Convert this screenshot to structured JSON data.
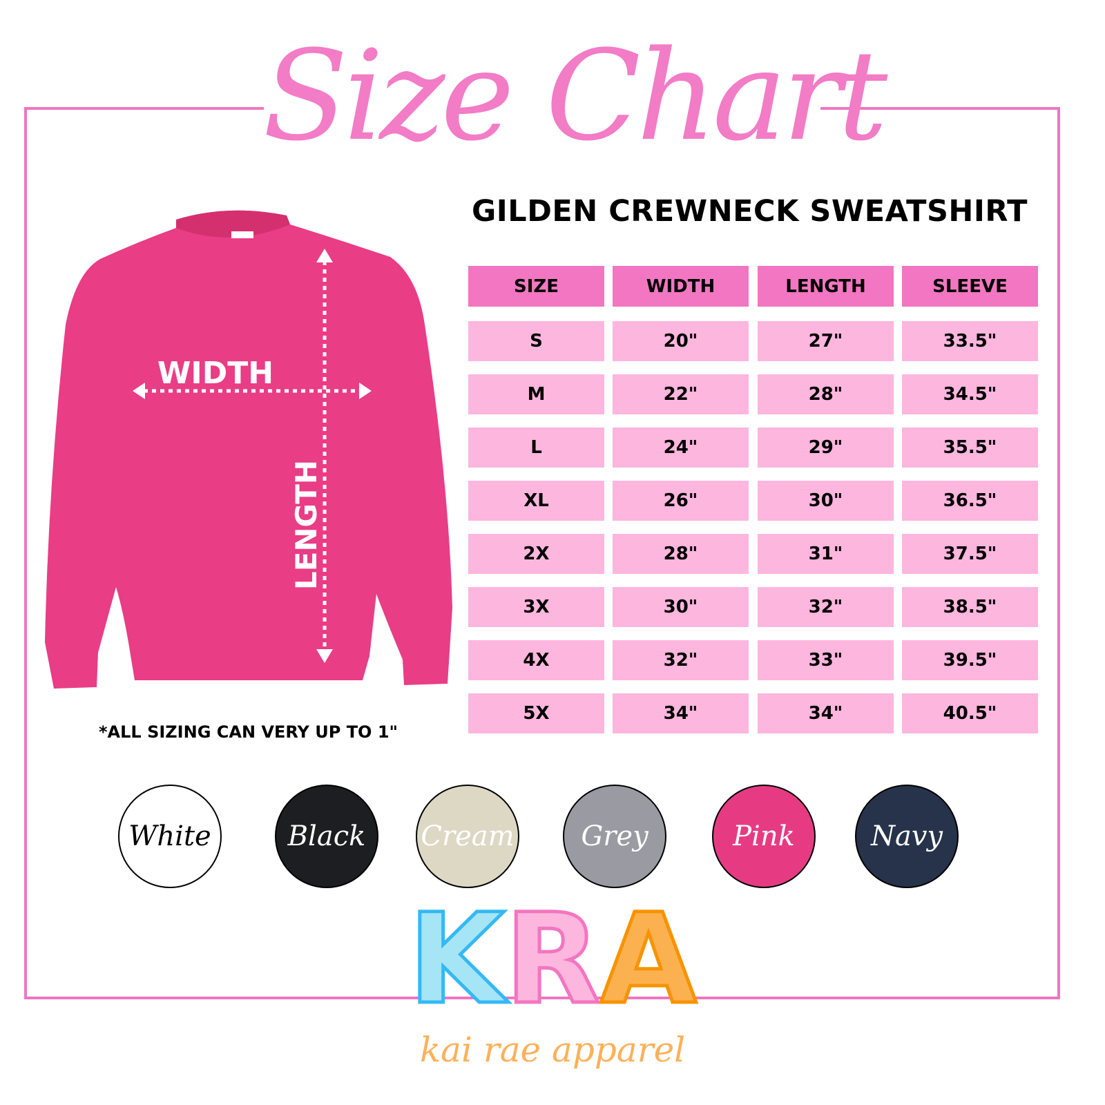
{
  "title": "Size Chart",
  "subtitle": "GILDEN CREWNECK SWEATSHIRT",
  "colors": {
    "frame": "#f075c0",
    "header": "#f276c1",
    "cell": "#fdb6de",
    "shirt": "#e93d86"
  },
  "diagram": {
    "width_label": "WIDTH",
    "length_label": "LENGTH"
  },
  "table": {
    "headers": [
      "SIZE",
      "WIDTH",
      "LENGTH",
      "SLEEVE"
    ],
    "rows": [
      [
        "S",
        "20\"",
        "27\"",
        "33.5\""
      ],
      [
        "M",
        "22\"",
        "28\"",
        "34.5\""
      ],
      [
        "L",
        "24\"",
        "29\"",
        "35.5\""
      ],
      [
        "XL",
        "26\"",
        "30\"",
        "36.5\""
      ],
      [
        "2X",
        "28\"",
        "31\"",
        "37.5\""
      ],
      [
        "3X",
        "30\"",
        "32\"",
        "38.5\""
      ],
      [
        "4X",
        "32\"",
        "33\"",
        "39.5\""
      ],
      [
        "5X",
        "34\"",
        "34\"",
        "40.5\""
      ]
    ]
  },
  "footnote": "*ALL SIZING CAN VERY UP TO 1\"",
  "swatches": [
    {
      "label": "White",
      "color": "#ffffff",
      "text": "#000000"
    },
    {
      "label": "Black",
      "color": "#1d1e22",
      "text": "#ffffff"
    },
    {
      "label": "Cream",
      "color": "#ddd8c4",
      "text": "#ffffff"
    },
    {
      "label": "Grey",
      "color": "#9a9aa2",
      "text": "#ffffff"
    },
    {
      "label": "Pink",
      "color": "#e63b83",
      "text": "#ffffff"
    },
    {
      "label": "Navy",
      "color": "#27334a",
      "text": "#ffffff"
    }
  ],
  "logo": {
    "letters": [
      "K",
      "R",
      "A"
    ],
    "tagline": "kai rae apparel"
  }
}
